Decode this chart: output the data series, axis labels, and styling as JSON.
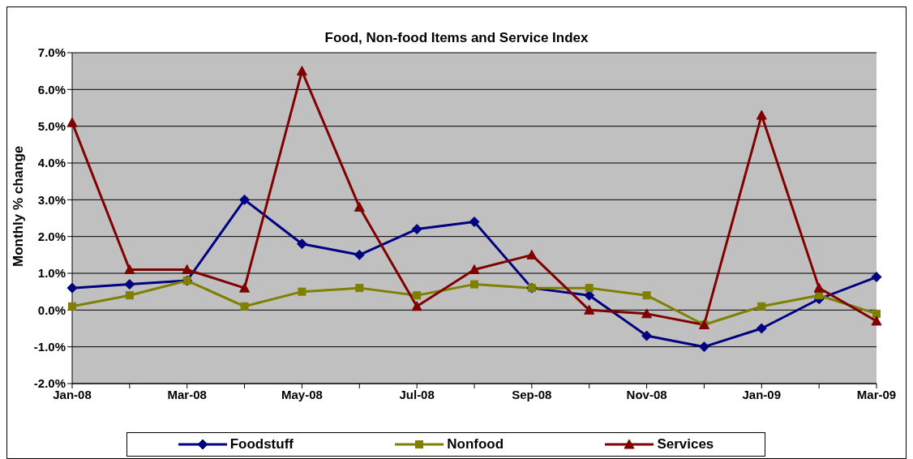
{
  "chart_data": {
    "type": "line",
    "title": "Food, Non-food Items and Service Index",
    "ylabel": "Monthly % change",
    "categories": [
      "Jan-08",
      null,
      "Mar-08",
      null,
      "May-08",
      null,
      "Jul-08",
      null,
      "Sep-08",
      null,
      "Nov-08",
      null,
      "Jan-09",
      null,
      "Mar-09"
    ],
    "series": [
      {
        "name": "Foodstuff",
        "color": "#000080",
        "marker": "diamond",
        "values": [
          0.6,
          0.7,
          0.8,
          3.0,
          1.8,
          1.5,
          2.2,
          2.4,
          0.6,
          0.4,
          -0.7,
          -1.0,
          -0.5,
          0.3,
          0.9
        ]
      },
      {
        "name": "Nonfood",
        "color": "#808000",
        "marker": "square",
        "values": [
          0.1,
          0.4,
          0.8,
          0.1,
          0.5,
          0.6,
          0.4,
          0.7,
          0.6,
          0.6,
          0.4,
          -0.4,
          0.1,
          0.4,
          -0.1
        ]
      },
      {
        "name": "Services",
        "color": "#800000",
        "marker": "triangle",
        "values": [
          5.1,
          1.1,
          1.1,
          0.6,
          6.5,
          2.8,
          0.1,
          1.1,
          1.5,
          0.0,
          -0.1,
          -0.4,
          5.3,
          0.6,
          -0.3
        ]
      }
    ],
    "ylim": [
      -2,
      7
    ],
    "yticks": [
      {
        "value": -2,
        "label": "-2.0%"
      },
      {
        "value": -1,
        "label": "-1.0%"
      },
      {
        "value": 0,
        "label": "0.0%"
      },
      {
        "value": 1,
        "label": "1.0%"
      },
      {
        "value": 2,
        "label": "2.0%"
      },
      {
        "value": 3,
        "label": "3.0%"
      },
      {
        "value": 4,
        "label": "4.0%"
      },
      {
        "value": 5,
        "label": "5.0%"
      },
      {
        "value": 6,
        "label": "6.0%"
      },
      {
        "value": 7,
        "label": "7.0%"
      }
    ],
    "grid": "y",
    "legend": "bottom",
    "line_style": "solid"
  }
}
